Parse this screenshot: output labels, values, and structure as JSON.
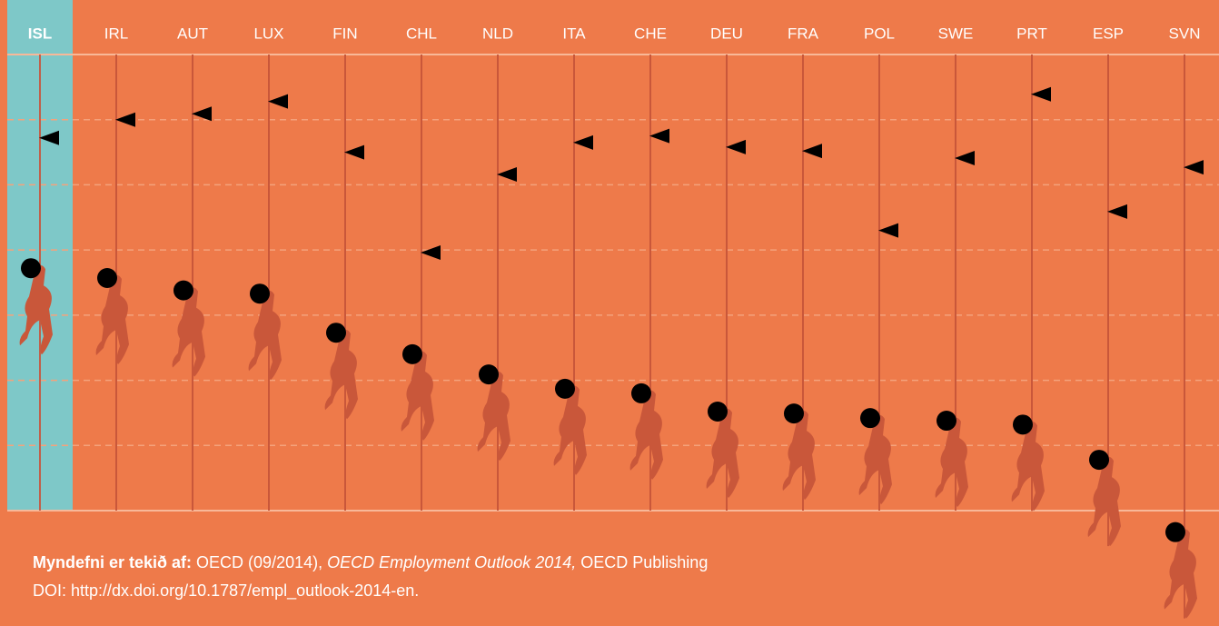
{
  "chart_data": {
    "type": "rope-dot",
    "categories": [
      "ISL",
      "IRL",
      "AUT",
      "LUX",
      "FIN",
      "CHL",
      "NLD",
      "ITA",
      "CHE",
      "DEU",
      "FRA",
      "POL",
      "SWE",
      "PRT",
      "ESP",
      "SVN"
    ],
    "highlight_index": 0,
    "series": [
      {
        "marker": "circle",
        "color": "#000000",
        "values": [
          3.72,
          3.57,
          3.38,
          3.33,
          2.73,
          2.4,
          2.09,
          1.87,
          1.8,
          1.52,
          1.49,
          1.42,
          1.38,
          1.32,
          0.78,
          -0.33
        ]
      },
      {
        "marker": "triangle",
        "color": "#000000",
        "values": [
          5.72,
          6.0,
          6.09,
          6.28,
          5.5,
          3.96,
          5.16,
          5.65,
          5.75,
          5.58,
          5.52,
          4.3,
          5.41,
          6.39,
          4.59,
          5.27
        ]
      }
    ],
    "ylim": [
      -1.5,
      7
    ],
    "yticks": [
      0,
      1,
      2,
      3,
      4,
      5,
      6,
      7
    ],
    "grid": true,
    "source": {
      "lead": "Myndefni er tekið af:",
      "text": "OECD (09/2014),",
      "publication": "OECD Employment Outlook 2014,",
      "publisher": "OECD Publishing",
      "doi": "DOI: http://dx.doi.org/10.1787/empl_outlook-2014-en."
    }
  }
}
